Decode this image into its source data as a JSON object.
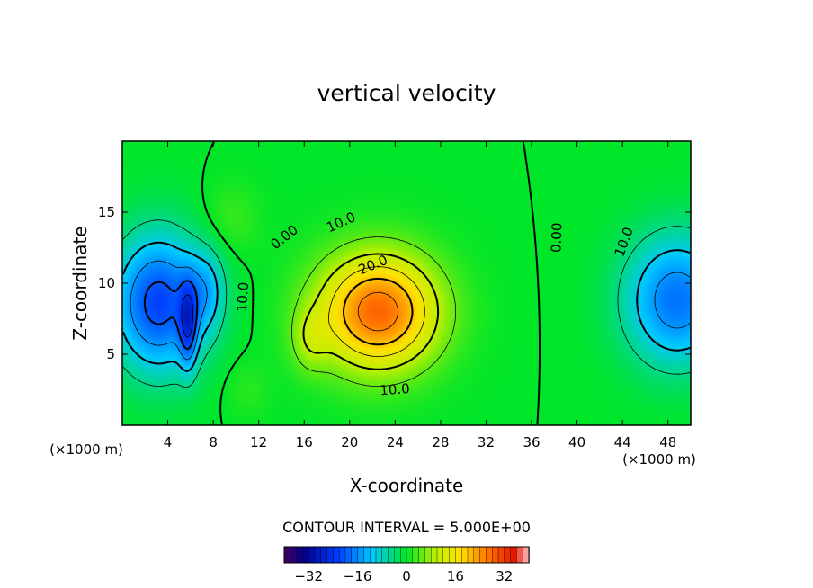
{
  "chart_data": {
    "type": "heatmap",
    "title": "vertical velocity",
    "xlabel": "X-coordinate",
    "ylabel": "Z-coordinate",
    "x_unit": "(×1000 m)",
    "y_unit": "(×1000 m)",
    "xlim": [
      0,
      50
    ],
    "ylim": [
      0,
      20
    ],
    "xticks": [
      4,
      8,
      12,
      16,
      20,
      24,
      28,
      32,
      36,
      40,
      44,
      48
    ],
    "yticks": [
      5,
      10,
      15
    ],
    "contour_interval_text": "CONTOUR INTERVAL = 5.000E+00",
    "contour_labels": [
      {
        "text": "0.00",
        "x": 14.5,
        "y": 13.0,
        "angle": -38
      },
      {
        "text": "10.0",
        "x": 19.4,
        "y": 14.0,
        "angle": -24
      },
      {
        "text": "20.0",
        "x": 22.2,
        "y": 11.0,
        "angle": -22
      },
      {
        "text": "10.0",
        "x": 24.0,
        "y": 2.2,
        "angle": -4
      },
      {
        "text": "0.00",
        "x": 38.6,
        "y": 13.2,
        "angle": -88
      },
      {
        "text": "10.0",
        "x": 44.5,
        "y": 12.8,
        "angle": -70
      },
      {
        "text": "10.0",
        "x": 11.0,
        "y": 9.0,
        "angle": -86
      }
    ],
    "features": [
      {
        "kind": "updraft",
        "center": [
          22.5,
          8.0
        ],
        "peak": 28
      },
      {
        "kind": "downdraft",
        "center": [
          3.5,
          8.5
        ],
        "peak": -22
      },
      {
        "kind": "downdraft",
        "center": [
          5.6,
          7.0
        ],
        "peak": -34
      },
      {
        "kind": "downdraft",
        "center": [
          48.5,
          8.8
        ],
        "peak": -18
      }
    ],
    "colorbar": {
      "ticks": [
        -32,
        -16,
        0,
        16,
        32
      ],
      "range": [
        -40,
        40
      ]
    }
  }
}
